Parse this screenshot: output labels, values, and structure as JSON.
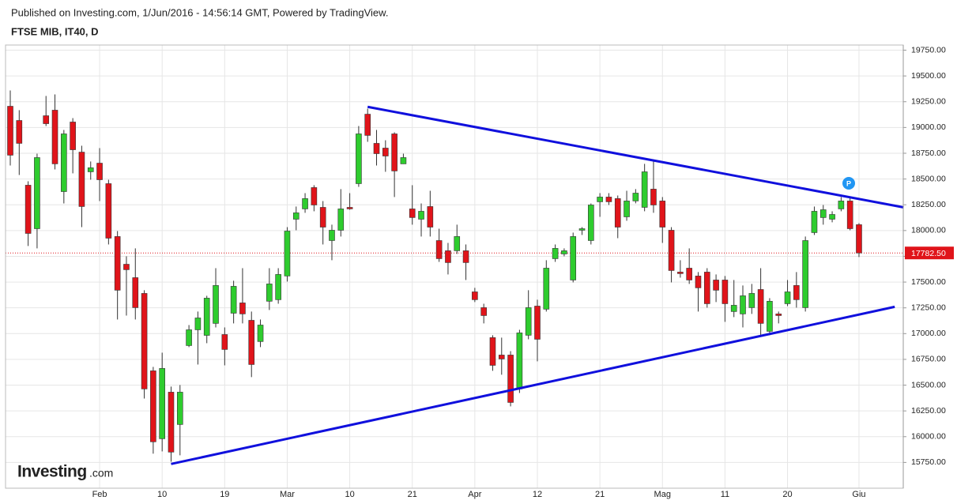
{
  "chart_data": {
    "type": "candlestick",
    "source": "Published on Investing.com, 1/Jun/2016 - 14:56:14 GMT, Powered by TradingView.",
    "title": "FTSE MIB, IT40, D",
    "logo": {
      "name": "Investing",
      "suffix": ".com"
    },
    "categories": [
      null,
      null,
      null,
      null,
      null,
      null,
      null,
      null,
      null,
      null,
      "Feb",
      null,
      null,
      null,
      null,
      null,
      null,
      "10",
      null,
      null,
      null,
      null,
      null,
      null,
      "19",
      null,
      null,
      null,
      null,
      null,
      null,
      "Mar",
      null,
      null,
      null,
      null,
      null,
      null,
      "10",
      null,
      null,
      null,
      null,
      null,
      null,
      "21",
      null,
      null,
      null,
      null,
      null,
      null,
      "Apr",
      null,
      null,
      null,
      null,
      null,
      null,
      "12",
      null,
      null,
      null,
      null,
      null,
      null,
      "21",
      null,
      null,
      null,
      null,
      null,
      null,
      "Mag",
      null,
      null,
      null,
      null,
      null,
      null,
      "11",
      null,
      null,
      null,
      null,
      null,
      null,
      "20",
      null,
      null,
      null,
      null,
      null,
      null,
      null,
      "Giu"
    ],
    "open": [
      19206,
      19068,
      18440,
      18018,
      19114,
      19168,
      18378,
      19053,
      18761,
      18570,
      18654,
      18455,
      17942,
      17673,
      17543,
      17390,
      16639,
      15980,
      16432,
      16118,
      16884,
      17037,
      16983,
      17099,
      16991,
      17198,
      17298,
      17129,
      16923,
      17314,
      17329,
      17559,
      18110,
      18210,
      18417,
      18225,
      17903,
      18003,
      18225,
      18455,
      19129,
      18846,
      18800,
      18938,
      18647,
      18210,
      18110,
      18233,
      17903,
      17804,
      17804,
      17804,
      17405,
      17252,
      16961,
      16792,
      16792,
      16463,
      16984,
      17267,
      17237,
      17727,
      17773,
      17520,
      18003,
      17903,
      18279,
      18325,
      18310,
      18133,
      18287,
      18225,
      18402,
      18287,
      18003,
      17597,
      17635,
      17559,
      17597,
      17520,
      17520,
      17214,
      17191,
      17252,
      17428,
      17022,
      17191,
      17290,
      17467,
      17252,
      17980,
      18126,
      18110,
      18210,
      18287,
      18057
    ],
    "high": [
      19359,
      19168,
      18478,
      18746,
      19306,
      19321,
      18976,
      19091,
      18823,
      18670,
      18800,
      18493,
      17995,
      17750,
      17827,
      17421,
      16677,
      16815,
      16486,
      16501,
      17083,
      17214,
      17367,
      17635,
      17060,
      17513,
      17635,
      17214,
      17137,
      17635,
      17635,
      18033,
      18233,
      18363,
      18440,
      18286,
      18057,
      18402,
      18363,
      19014,
      19183,
      18976,
      18876,
      18953,
      18746,
      18440,
      18263,
      18386,
      18018,
      17880,
      18057,
      17865,
      17444,
      17290,
      16984,
      16961,
      16830,
      17037,
      17421,
      17329,
      17712,
      17865,
      17827,
      17980,
      18033,
      18263,
      18363,
      18363,
      18340,
      18386,
      18402,
      18647,
      18670,
      18325,
      18033,
      17712,
      17827,
      17597,
      17635,
      17574,
      17559,
      17520,
      17467,
      17482,
      17635,
      17344,
      17214,
      17520,
      17597,
      17942,
      18233,
      18248,
      18187,
      18325,
      18325,
      18072
    ],
    "low": [
      18631,
      18539,
      17850,
      17827,
      19014,
      18593,
      18263,
      18555,
      18033,
      18493,
      18286,
      17865,
      17137,
      17175,
      17137,
      16370,
      15835,
      15857,
      15757,
      15819,
      16869,
      16700,
      16907,
      17060,
      16692,
      17099,
      17099,
      16578,
      16869,
      17229,
      17290,
      17505,
      18003,
      18172,
      18187,
      17865,
      17712,
      17942,
      18202,
      18424,
      18861,
      18631,
      18570,
      18325,
      18647,
      18057,
      17942,
      17942,
      17696,
      17574,
      17773,
      17520,
      17306,
      17099,
      16639,
      16601,
      16294,
      16424,
      16945,
      16731,
      17214,
      17696,
      17750,
      17497,
      17957,
      17865,
      18133,
      18248,
      17926,
      18095,
      18264,
      18187,
      18172,
      17880,
      17497,
      17543,
      17482,
      17214,
      17252,
      17306,
      17114,
      17160,
      17060,
      17191,
      16984,
      16984,
      17099,
      17267,
      17252,
      17214,
      17957,
      18057,
      18080,
      18187,
      18003,
      17743
    ],
    "close": [
      18731,
      18846,
      17972,
      18708,
      19037,
      18647,
      18938,
      18784,
      18233,
      18609,
      18493,
      17926,
      17421,
      17620,
      17252,
      16463,
      15950,
      16662,
      15850,
      16432,
      17037,
      17152,
      17344,
      17467,
      16846,
      17459,
      17191,
      16700,
      17083,
      17482,
      17574,
      17995,
      18172,
      18310,
      18248,
      18033,
      18003,
      18210,
      18210,
      18938,
      18923,
      18746,
      18723,
      18578,
      18708,
      18126,
      18187,
      18033,
      17727,
      17689,
      17942,
      17689,
      17329,
      17175,
      16692,
      16754,
      16332,
      17007,
      17252,
      16945,
      17635,
      17827,
      17804,
      17942,
      18018,
      18248,
      18325,
      18279,
      18033,
      18287,
      18363,
      18570,
      18248,
      18033,
      17612,
      17582,
      17520,
      17444,
      17290,
      17421,
      17290,
      17275,
      17367,
      17390,
      17099,
      17314,
      17175,
      17405,
      17329,
      17903,
      18187,
      18202,
      18156,
      18287,
      18018,
      17782.5
    ],
    "up_color": "#2ecc2e",
    "down_color": "#e0141a",
    "last_price": {
      "value": 17782.5,
      "label": "17782.50"
    },
    "trendlines": [
      {
        "x": [
          40,
          100
        ],
        "y": [
          19200,
          18225
        ]
      },
      {
        "x": [
          18,
          99
        ],
        "y": [
          15735,
          17260
        ]
      }
    ],
    "trendline_color": "#1010dd",
    "ylim": [
      15500,
      19800
    ],
    "yticks": [
      {
        "value": 15750,
        "label": "15750.00"
      },
      {
        "value": 16000,
        "label": "16000.00"
      },
      {
        "value": 16250,
        "label": "16250.00"
      },
      {
        "value": 16500,
        "label": "16500.00"
      },
      {
        "value": 16750,
        "label": "16750.00"
      },
      {
        "value": 17000,
        "label": "17000.00"
      },
      {
        "value": 17250,
        "label": "17250.00"
      },
      {
        "value": 17500,
        "label": "17500.00"
      },
      {
        "value": 17750,
        "label": "17750.00"
      },
      {
        "value": 18000,
        "label": "18000.00"
      },
      {
        "value": 18250,
        "label": "18250.00"
      },
      {
        "value": 18500,
        "label": "18500.00"
      },
      {
        "value": 18750,
        "label": "18750.00"
      },
      {
        "value": 19000,
        "label": "19000.00"
      },
      {
        "value": 19250,
        "label": "19250.00"
      },
      {
        "value": 19500,
        "label": "19500.00"
      },
      {
        "value": 19750,
        "label": "19750.00"
      }
    ],
    "grid": true
  }
}
